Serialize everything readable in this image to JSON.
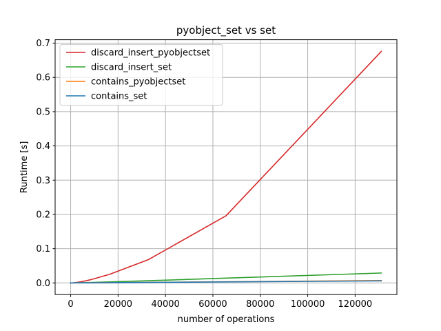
{
  "chart_data": {
    "type": "line",
    "title": "pyobject_set vs set",
    "xlabel": "number of operations",
    "ylabel": "Runtime [s]",
    "xlim": [
      -6553.6,
      137625.6
    ],
    "ylim": [
      -0.034,
      0.71
    ],
    "xticks": [
      0,
      20000,
      40000,
      60000,
      80000,
      100000,
      120000
    ],
    "xtick_labels": [
      "0",
      "20000",
      "40000",
      "60000",
      "80000",
      "100000",
      "120000"
    ],
    "yticks": [
      0.0,
      0.1,
      0.2,
      0.3,
      0.4,
      0.5,
      0.6,
      0.7
    ],
    "ytick_labels": [
      "0.0",
      "0.1",
      "0.2",
      "0.3",
      "0.4",
      "0.5",
      "0.6",
      "0.7"
    ],
    "grid": true,
    "legend_position": "top-left",
    "x": [
      1,
      2,
      4,
      8,
      16,
      32,
      64,
      128,
      256,
      512,
      1024,
      2048,
      4096,
      8192,
      16384,
      32768,
      65536,
      131072
    ],
    "series": [
      {
        "name": "discard_insert_pyobjectset",
        "color": "#d62728",
        "values": [
          0,
          0,
          0,
          0,
          0,
          0,
          0,
          0,
          0,
          0.0001,
          0.0003,
          0.001,
          0.003,
          0.009,
          0.025,
          0.068,
          0.196,
          0.676
        ]
      },
      {
        "name": "discard_insert_set",
        "color": "#2ca02c",
        "values": [
          0,
          0,
          0,
          0,
          0,
          0,
          0,
          0,
          0,
          0,
          0.0001,
          0.0002,
          0.0004,
          0.0012,
          0.003,
          0.0065,
          0.014,
          0.029
        ]
      },
      {
        "name": "contains_pyobjectset",
        "color": "#ff7f0e",
        "values": [
          0,
          0,
          0,
          0,
          0,
          0,
          0,
          0,
          0,
          0,
          0,
          0.0001,
          0.0002,
          0.0004,
          0.0008,
          0.0017,
          0.0035,
          0.007
        ]
      },
      {
        "name": "contains_set",
        "color": "#1f77b4",
        "values": [
          0,
          0,
          0,
          0,
          0,
          0,
          0,
          0,
          0,
          0,
          0,
          0.0001,
          0.0002,
          0.0003,
          0.0007,
          0.0015,
          0.003,
          0.006
        ]
      }
    ]
  }
}
